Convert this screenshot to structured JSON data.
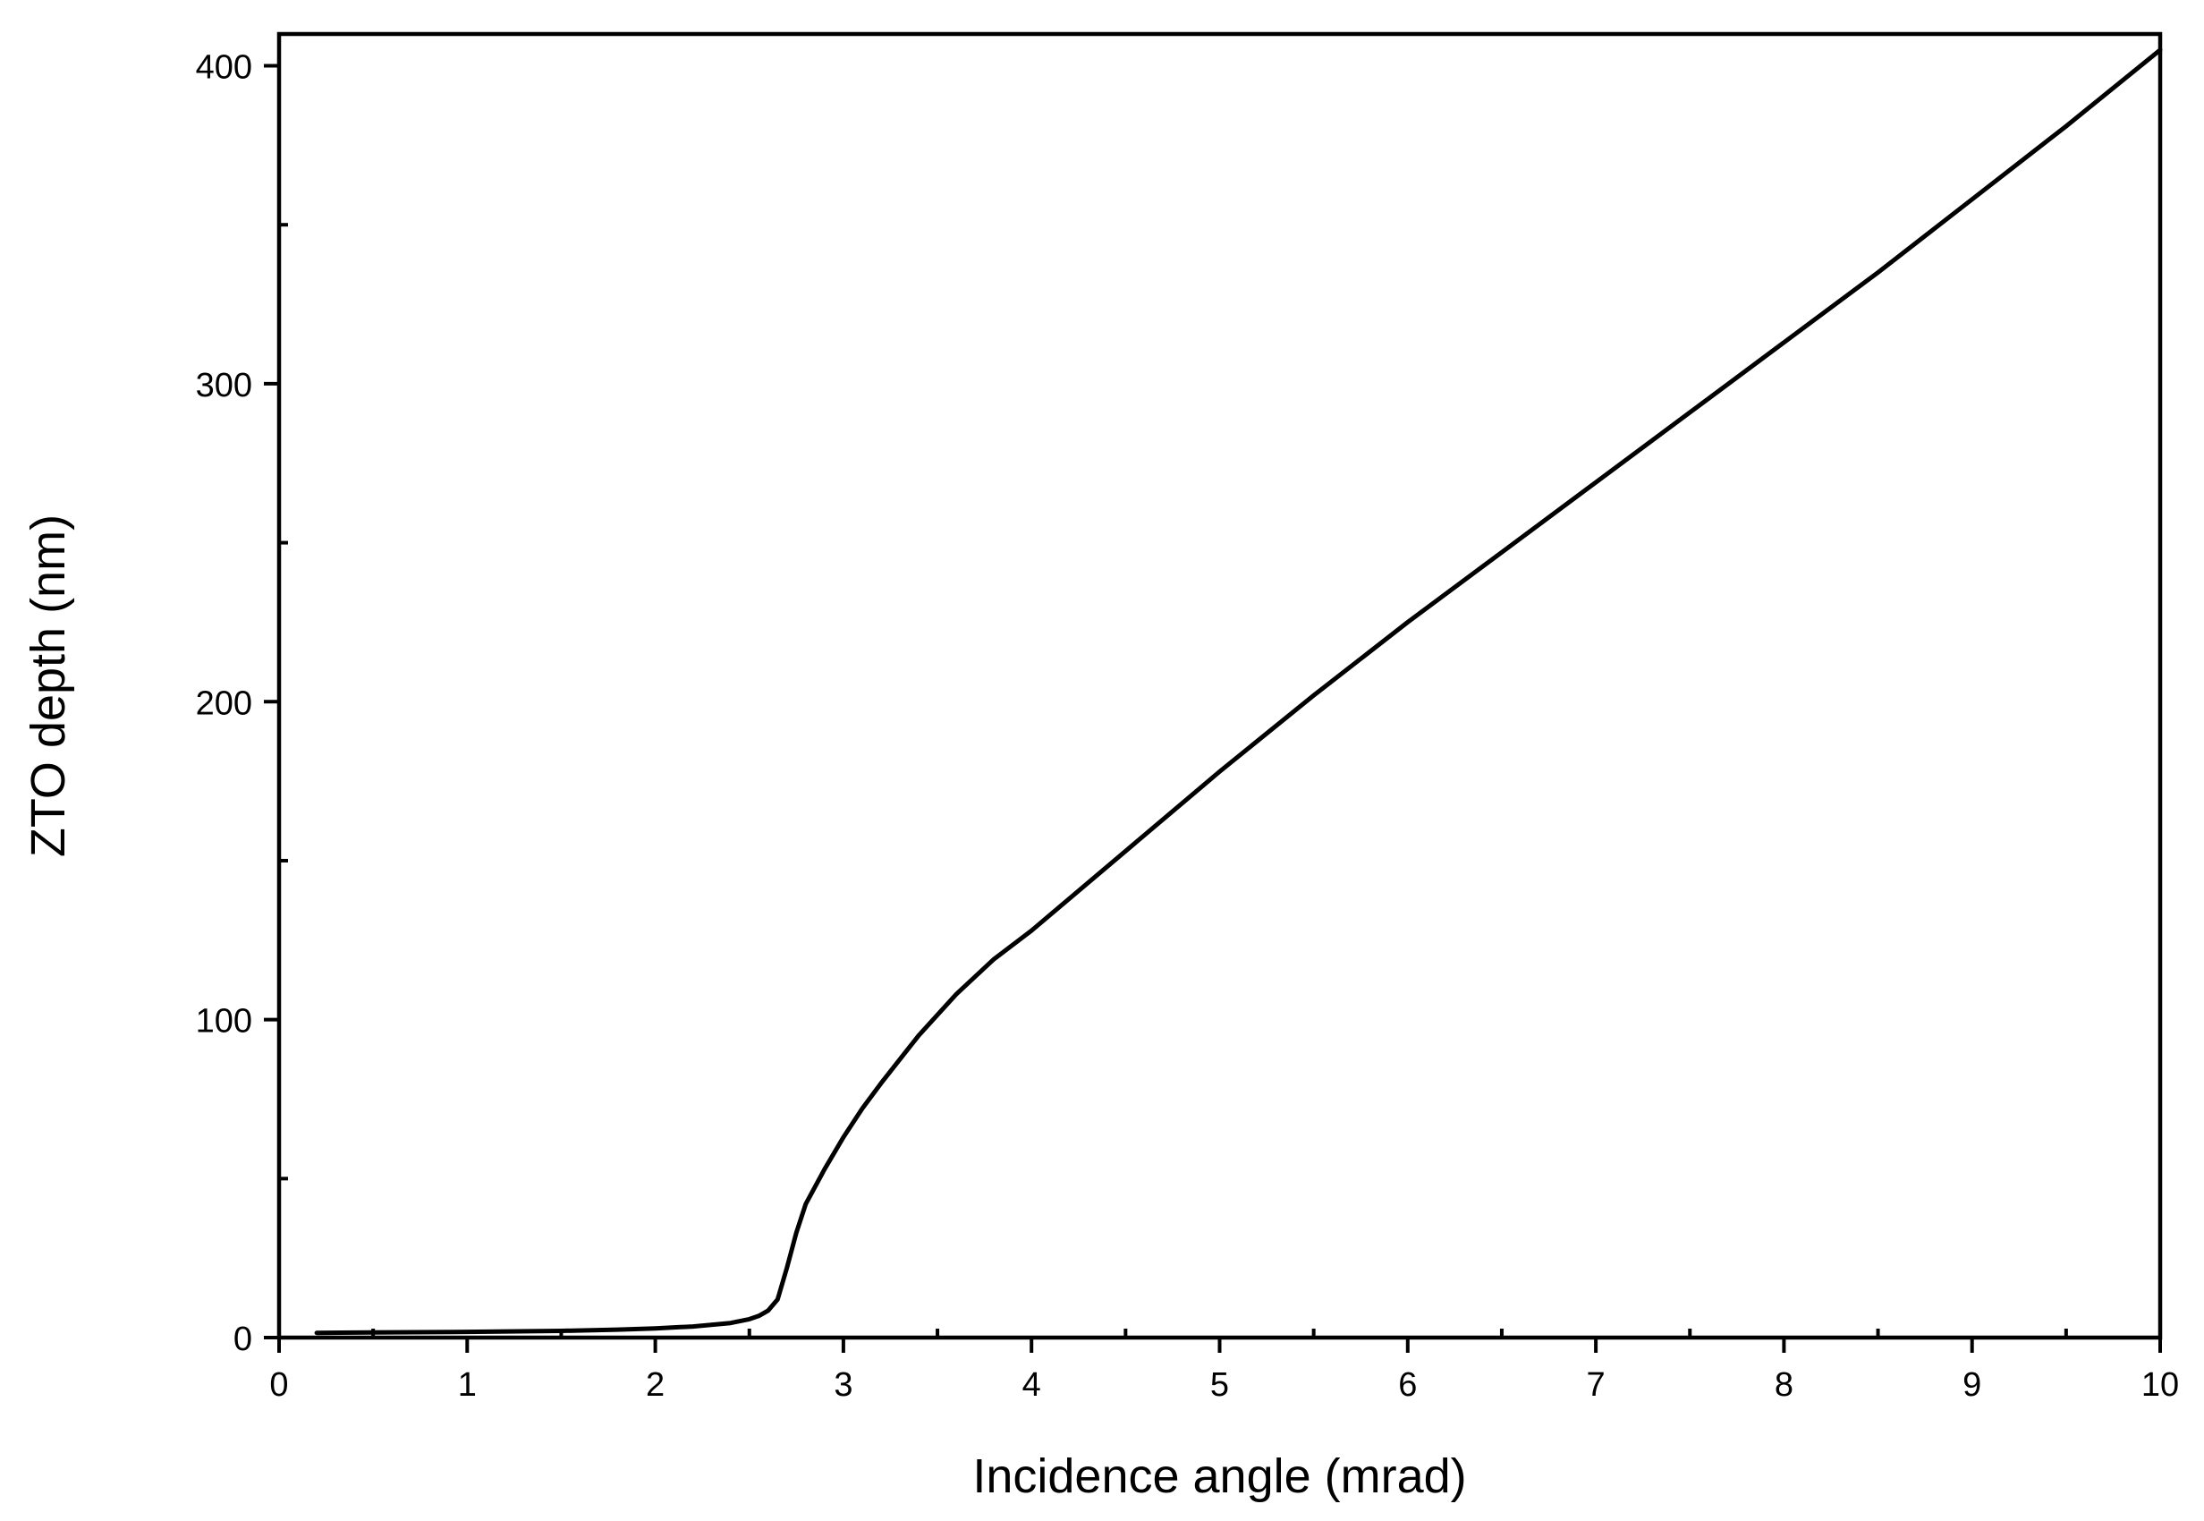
{
  "chart_data": {
    "type": "line",
    "xlabel": "Incidence angle (mrad)",
    "ylabel": "ZTO depth (nm)",
    "xlim": [
      0,
      10
    ],
    "ylim": [
      0,
      410
    ],
    "x_ticks": [
      0,
      1,
      2,
      3,
      4,
      5,
      6,
      7,
      8,
      9,
      10
    ],
    "x_minor_ticks": [
      0.5,
      1.5,
      2.5,
      3.5,
      4.5,
      5.5,
      6.5,
      7.5,
      8.5,
      9.5
    ],
    "y_ticks": [
      0,
      100,
      200,
      300,
      400
    ],
    "y_minor_ticks": [
      50,
      150,
      250,
      350
    ],
    "grid": false,
    "line_color": "#000000",
    "series": [
      {
        "x": [
          0.2,
          0.5,
          1.0,
          1.5,
          1.8,
          2.0,
          2.2,
          2.4,
          2.5,
          2.55,
          2.6,
          2.65,
          2.7,
          2.75,
          2.8,
          2.9,
          3.0,
          3.1,
          3.2,
          3.4,
          3.6,
          3.8,
          4.0,
          4.5,
          5.0,
          5.5,
          6.0,
          6.5,
          7.0,
          7.5,
          8.0,
          8.5,
          9.0,
          9.5,
          10.0
        ],
        "y": [
          1.5,
          1.6,
          1.8,
          2.1,
          2.5,
          2.9,
          3.5,
          4.6,
          5.8,
          6.8,
          8.5,
          12,
          22,
          33,
          42,
          53,
          63,
          72,
          80,
          95,
          108,
          119,
          128,
          153,
          178,
          202,
          225,
          247,
          269,
          291,
          313,
          335,
          358,
          381,
          405
        ]
      }
    ]
  }
}
